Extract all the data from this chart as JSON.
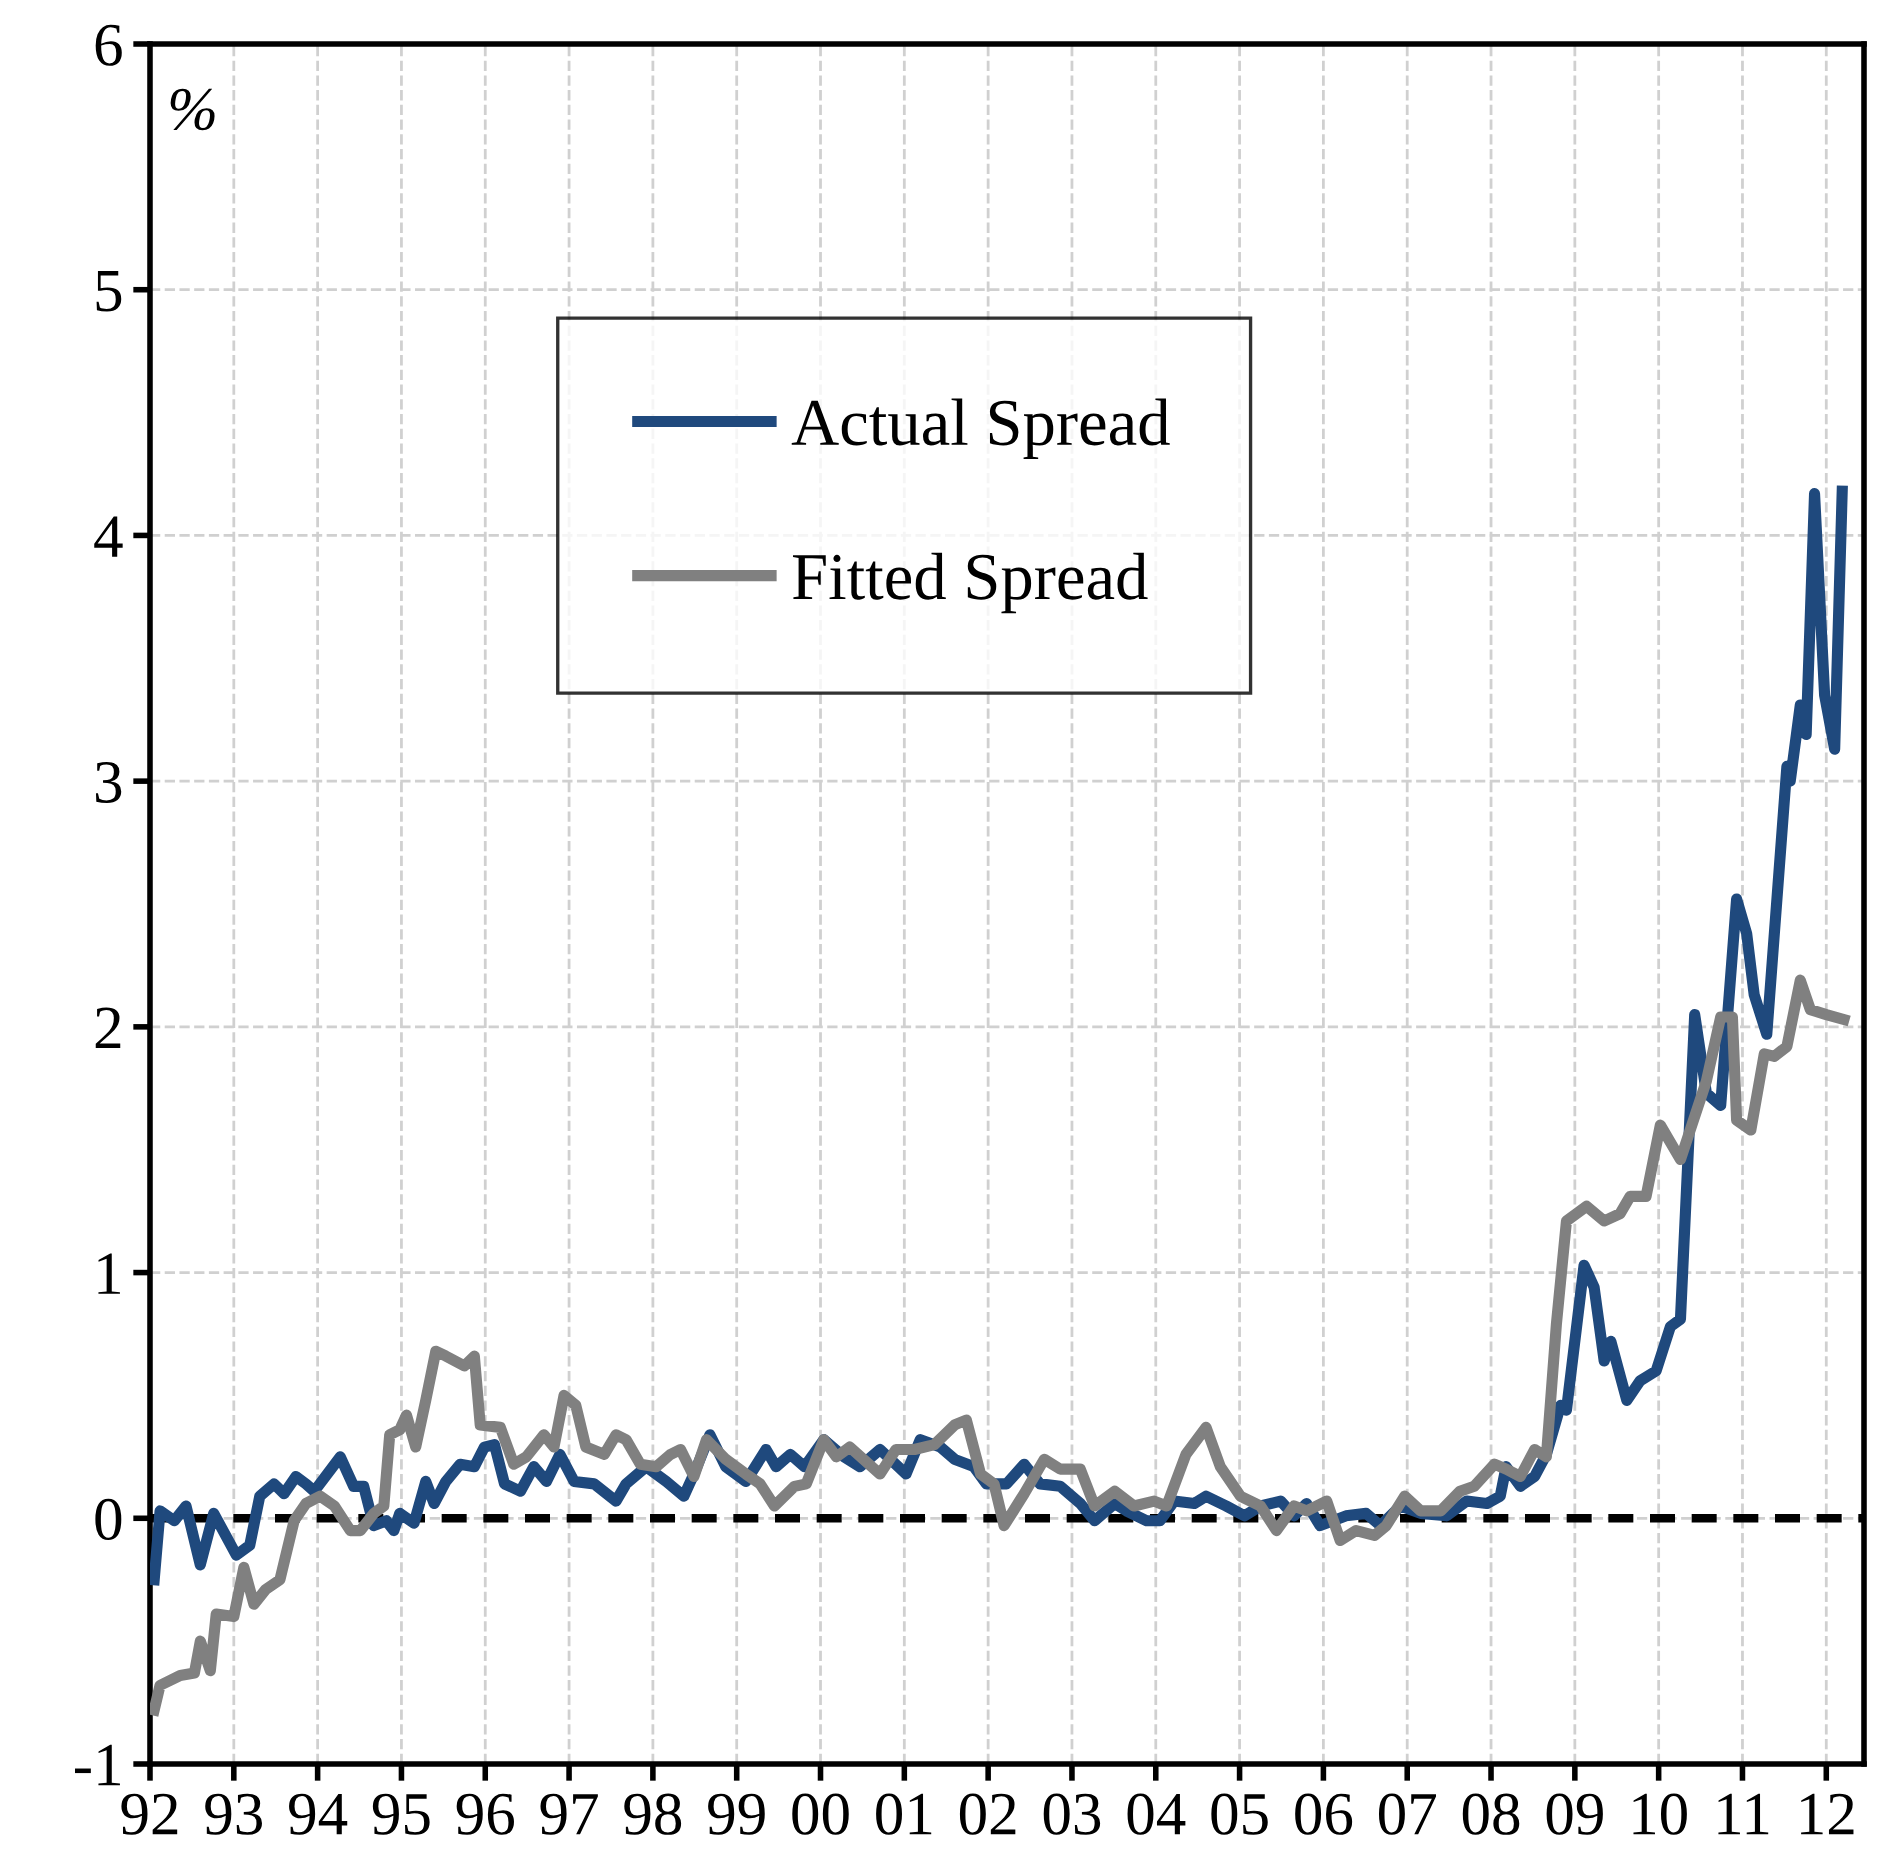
{
  "chart_data": {
    "type": "line",
    "annotations": [
      "%"
    ],
    "series": [
      {
        "name": "Actual Spread",
        "color": "#1f497d",
        "x": [
          1992.05,
          1992.12,
          1992.29,
          1992.43,
          1992.6,
          1992.76,
          1993.03,
          1993.19,
          1993.31,
          1993.48,
          1993.6,
          1993.74,
          1993.86,
          1993.96,
          1994.27,
          1994.43,
          1994.55,
          1994.67,
          1994.82,
          1994.91,
          1994.98,
          1995.15,
          1995.29,
          1995.39,
          1995.53,
          1995.7,
          1995.87,
          1995.99,
          1996.11,
          1996.23,
          1996.42,
          1996.58,
          1996.73,
          1996.89,
          1997.06,
          1997.3,
          1997.56,
          1997.68,
          1997.92,
          1998.16,
          1998.37,
          1998.49,
          1998.68,
          1998.87,
          1999.11,
          1999.35,
          1999.47,
          1999.64,
          1999.81,
          2000.04,
          2000.28,
          2000.47,
          2000.71,
          2001.02,
          2001.19,
          2001.43,
          2001.6,
          2001.83,
          2001.98,
          2002.22,
          2002.43,
          2002.62,
          2002.86,
          2003.1,
          2003.27,
          2003.51,
          2003.65,
          2003.89,
          2004.05,
          2004.22,
          2004.46,
          2004.6,
          2004.84,
          2005.06,
          2005.25,
          2005.49,
          2005.65,
          2005.8,
          2005.96,
          2006.27,
          2006.51,
          2006.68,
          2006.92,
          2007.16,
          2007.47,
          2007.71,
          2007.95,
          2008.11,
          2008.18,
          2008.35,
          2008.52,
          2008.66,
          2008.83,
          2008.9,
          2009.11,
          2009.23,
          2009.35,
          2009.43,
          2009.62,
          2009.78,
          2009.97,
          2010.14,
          2010.26,
          2010.43,
          2010.57,
          2010.74,
          2010.93,
          2011.05,
          2011.14,
          2011.29,
          2011.53,
          2011.57,
          2011.69,
          2011.76,
          2011.86,
          2011.98,
          2012.1,
          2012.19
        ],
        "values": [
          -0.25,
          0.03,
          -0.01,
          0.05,
          -0.19,
          0.02,
          -0.15,
          -0.11,
          0.09,
          0.14,
          0.1,
          0.17,
          0.14,
          0.11,
          0.25,
          0.13,
          0.13,
          -0.03,
          -0.01,
          -0.05,
          0.02,
          -0.02,
          0.15,
          0.06,
          0.15,
          0.22,
          0.21,
          0.29,
          0.3,
          0.14,
          0.11,
          0.21,
          0.15,
          0.26,
          0.15,
          0.14,
          0.07,
          0.14,
          0.21,
          0.15,
          0.09,
          0.18,
          0.34,
          0.21,
          0.15,
          0.28,
          0.21,
          0.26,
          0.21,
          0.32,
          0.25,
          0.21,
          0.28,
          0.18,
          0.32,
          0.29,
          0.24,
          0.21,
          0.14,
          0.14,
          0.22,
          0.14,
          0.13,
          0.06,
          -0.01,
          0.06,
          0.03,
          -0.01,
          -0.01,
          0.07,
          0.06,
          0.09,
          0.05,
          0.01,
          0.05,
          0.07,
          0.01,
          0.06,
          -0.03,
          0.01,
          0.02,
          -0.03,
          0.05,
          0.02,
          0.01,
          0.07,
          0.06,
          0.09,
          0.21,
          0.13,
          0.17,
          0.26,
          0.46,
          0.44,
          1.03,
          0.94,
          0.64,
          0.72,
          0.48,
          0.56,
          0.6,
          0.78,
          0.81,
          2.05,
          1.73,
          1.68,
          2.52,
          2.38,
          2.13,
          1.97,
          3.06,
          3.0,
          3.31,
          3.19,
          4.17,
          3.35,
          3.13,
          4.18
        ]
      },
      {
        "name": "Fitted Spread",
        "color": "#808080",
        "x": [
          1992.05,
          1992.12,
          1992.36,
          1992.53,
          1992.6,
          1992.72,
          1992.79,
          1993.0,
          1993.12,
          1993.24,
          1993.38,
          1993.55,
          1993.72,
          1993.86,
          1994.03,
          1994.2,
          1994.39,
          1994.51,
          1994.67,
          1994.79,
          1994.86,
          1994.98,
          1995.06,
          1995.17,
          1995.29,
          1995.41,
          1995.53,
          1995.75,
          1995.87,
          1995.94,
          1996.18,
          1996.34,
          1996.49,
          1996.7,
          1996.82,
          1996.94,
          1997.08,
          1997.2,
          1997.42,
          1997.56,
          1997.68,
          1997.85,
          1998.04,
          1998.21,
          1998.33,
          1998.49,
          1998.64,
          1998.87,
          1999.11,
          1999.28,
          1999.45,
          1999.69,
          1999.83,
          2000.04,
          2000.19,
          2000.35,
          2000.71,
          2000.9,
          2001.12,
          2001.36,
          2001.6,
          2001.74,
          2001.91,
          2002.07,
          2002.19,
          2002.43,
          2002.67,
          2002.86,
          2003.1,
          2003.27,
          2003.51,
          2003.74,
          2003.98,
          2004.13,
          2004.36,
          2004.6,
          2004.77,
          2005.01,
          2005.25,
          2005.44,
          2005.65,
          2005.8,
          2006.04,
          2006.2,
          2006.39,
          2006.61,
          2006.75,
          2006.97,
          2007.16,
          2007.4,
          2007.63,
          2007.8,
          2008.04,
          2008.18,
          2008.35,
          2008.52,
          2008.66,
          2008.78,
          2008.9,
          2009.14,
          2009.35,
          2009.54,
          2009.66,
          2009.85,
          2010.02,
          2010.26,
          2010.57,
          2010.74,
          2010.88,
          2010.93,
          2011.1,
          2011.26,
          2011.38,
          2011.53,
          2011.69,
          2011.81,
          2012.0,
          2012.21
        ],
        "values": [
          -0.78,
          -0.68,
          -0.64,
          -0.63,
          -0.5,
          -0.62,
          -0.39,
          -0.4,
          -0.2,
          -0.35,
          -0.29,
          -0.25,
          -0.01,
          0.06,
          0.09,
          0.05,
          -0.05,
          -0.05,
          0.02,
          0.05,
          0.34,
          0.36,
          0.42,
          0.29,
          0.48,
          0.68,
          0.66,
          0.62,
          0.66,
          0.38,
          0.37,
          0.22,
          0.25,
          0.34,
          0.29,
          0.5,
          0.46,
          0.29,
          0.26,
          0.34,
          0.32,
          0.22,
          0.21,
          0.26,
          0.28,
          0.17,
          0.32,
          0.24,
          0.18,
          0.14,
          0.05,
          0.13,
          0.14,
          0.32,
          0.25,
          0.29,
          0.18,
          0.28,
          0.28,
          0.3,
          0.38,
          0.4,
          0.18,
          0.14,
          -0.03,
          0.1,
          0.24,
          0.2,
          0.2,
          0.05,
          0.11,
          0.05,
          0.07,
          0.05,
          0.26,
          0.37,
          0.21,
          0.09,
          0.05,
          -0.05,
          0.05,
          0.03,
          0.07,
          -0.09,
          -0.05,
          -0.07,
          -0.03,
          0.09,
          0.03,
          0.03,
          0.11,
          0.13,
          0.22,
          0.2,
          0.17,
          0.28,
          0.25,
          0.79,
          1.21,
          1.27,
          1.21,
          1.24,
          1.31,
          1.31,
          1.6,
          1.46,
          1.78,
          2.04,
          2.04,
          1.62,
          1.58,
          1.89,
          1.88,
          1.92,
          2.19,
          2.07,
          2.05,
          2.03
        ]
      }
    ],
    "ref_lines": [
      {
        "axis": "y",
        "value": 0,
        "color": "#000000",
        "line_style": "dashed"
      }
    ],
    "xlim": [
      1992,
      2012.45
    ],
    "xticks": [
      {
        "value": 1992,
        "label": "92"
      },
      {
        "value": 1993,
        "label": "93"
      },
      {
        "value": 1994,
        "label": "94"
      },
      {
        "value": 1995,
        "label": "95"
      },
      {
        "value": 1996,
        "label": "96"
      },
      {
        "value": 1997,
        "label": "97"
      },
      {
        "value": 1998,
        "label": "98"
      },
      {
        "value": 1999,
        "label": "99"
      },
      {
        "value": 2000,
        "label": "00"
      },
      {
        "value": 2001,
        "label": "01"
      },
      {
        "value": 2002,
        "label": "02"
      },
      {
        "value": 2003,
        "label": "03"
      },
      {
        "value": 2004,
        "label": "04"
      },
      {
        "value": 2005,
        "label": "05"
      },
      {
        "value": 2006,
        "label": "06"
      },
      {
        "value": 2007,
        "label": "07"
      },
      {
        "value": 2008,
        "label": "08"
      },
      {
        "value": 2009,
        "label": "09"
      },
      {
        "value": 2010,
        "label": "10"
      },
      {
        "value": 2011,
        "label": "11"
      },
      {
        "value": 2012,
        "label": "12"
      }
    ],
    "ylim": [
      -1,
      6
    ],
    "yticks": [
      -1,
      0,
      1,
      2,
      3,
      4,
      5,
      6
    ],
    "grid": true,
    "legend": "top",
    "marker": "none",
    "line_style": "solid"
  }
}
